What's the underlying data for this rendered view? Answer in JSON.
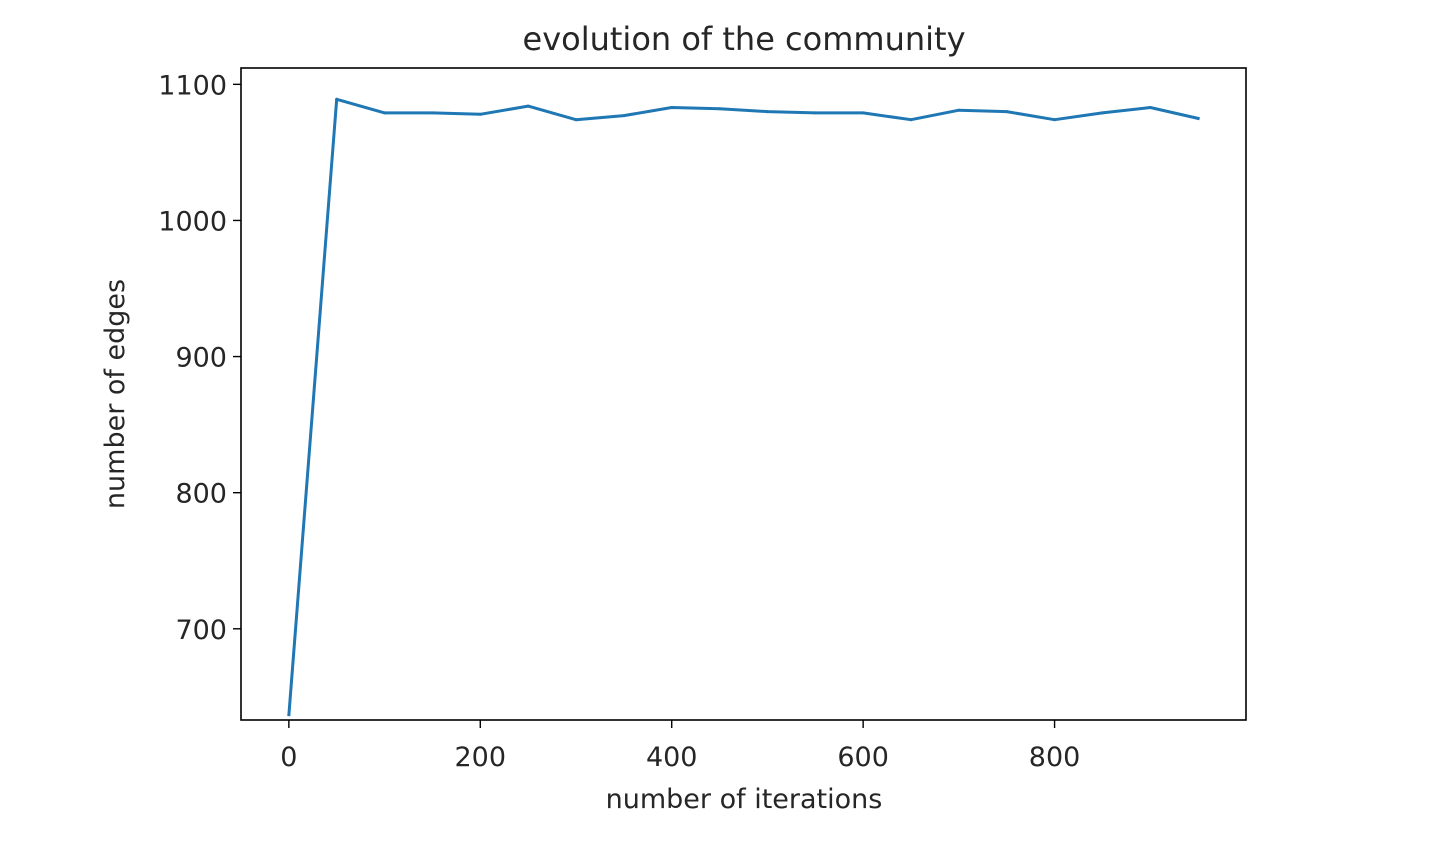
{
  "chart_data": {
    "type": "line",
    "title": "evolution of the community",
    "xlabel": "number of iterations",
    "ylabel": "number of edges",
    "xlim": [
      -50,
      1000
    ],
    "ylim": [
      633,
      1112
    ],
    "xticks": [
      0,
      200,
      400,
      600,
      800
    ],
    "yticks": [
      700,
      800,
      900,
      1000,
      1100
    ],
    "grid": false,
    "legend": "none",
    "series": [
      {
        "color": "#1f77b4",
        "x": [
          0,
          50,
          100,
          150,
          200,
          250,
          300,
          350,
          400,
          450,
          500,
          550,
          600,
          650,
          700,
          750,
          800,
          850,
          900,
          950
        ],
        "y": [
          637,
          1089,
          1079,
          1079,
          1078,
          1084,
          1074,
          1077,
          1083,
          1082,
          1080,
          1079,
          1079,
          1074,
          1081,
          1080,
          1074,
          1079,
          1083,
          1075
        ]
      }
    ]
  }
}
